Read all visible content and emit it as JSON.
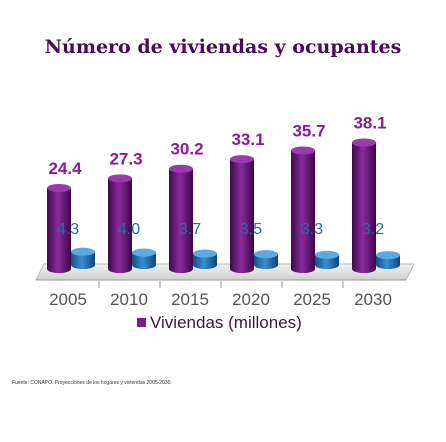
{
  "chart_data": {
    "type": "bar",
    "title": "Número de viviendas y ocupantes",
    "categories": [
      "2005",
      "2010",
      "2015",
      "2020",
      "2025",
      "2030"
    ],
    "series": [
      {
        "name": "Viviendas (millones)",
        "values": [
          24.4,
          27.3,
          30.2,
          33.1,
          35.7,
          38.1
        ],
        "color": "#7a1f8a"
      },
      {
        "name": "",
        "values": [
          4.3,
          4.0,
          3.7,
          3.5,
          3.3,
          3.2
        ],
        "color": "#1f6fae"
      }
    ],
    "legend_position": "bottom",
    "grid": false,
    "three_d": true
  },
  "source_note": "Fuente: CONAPO. Proyecciones de los hogares y viviendas 2005-2030."
}
